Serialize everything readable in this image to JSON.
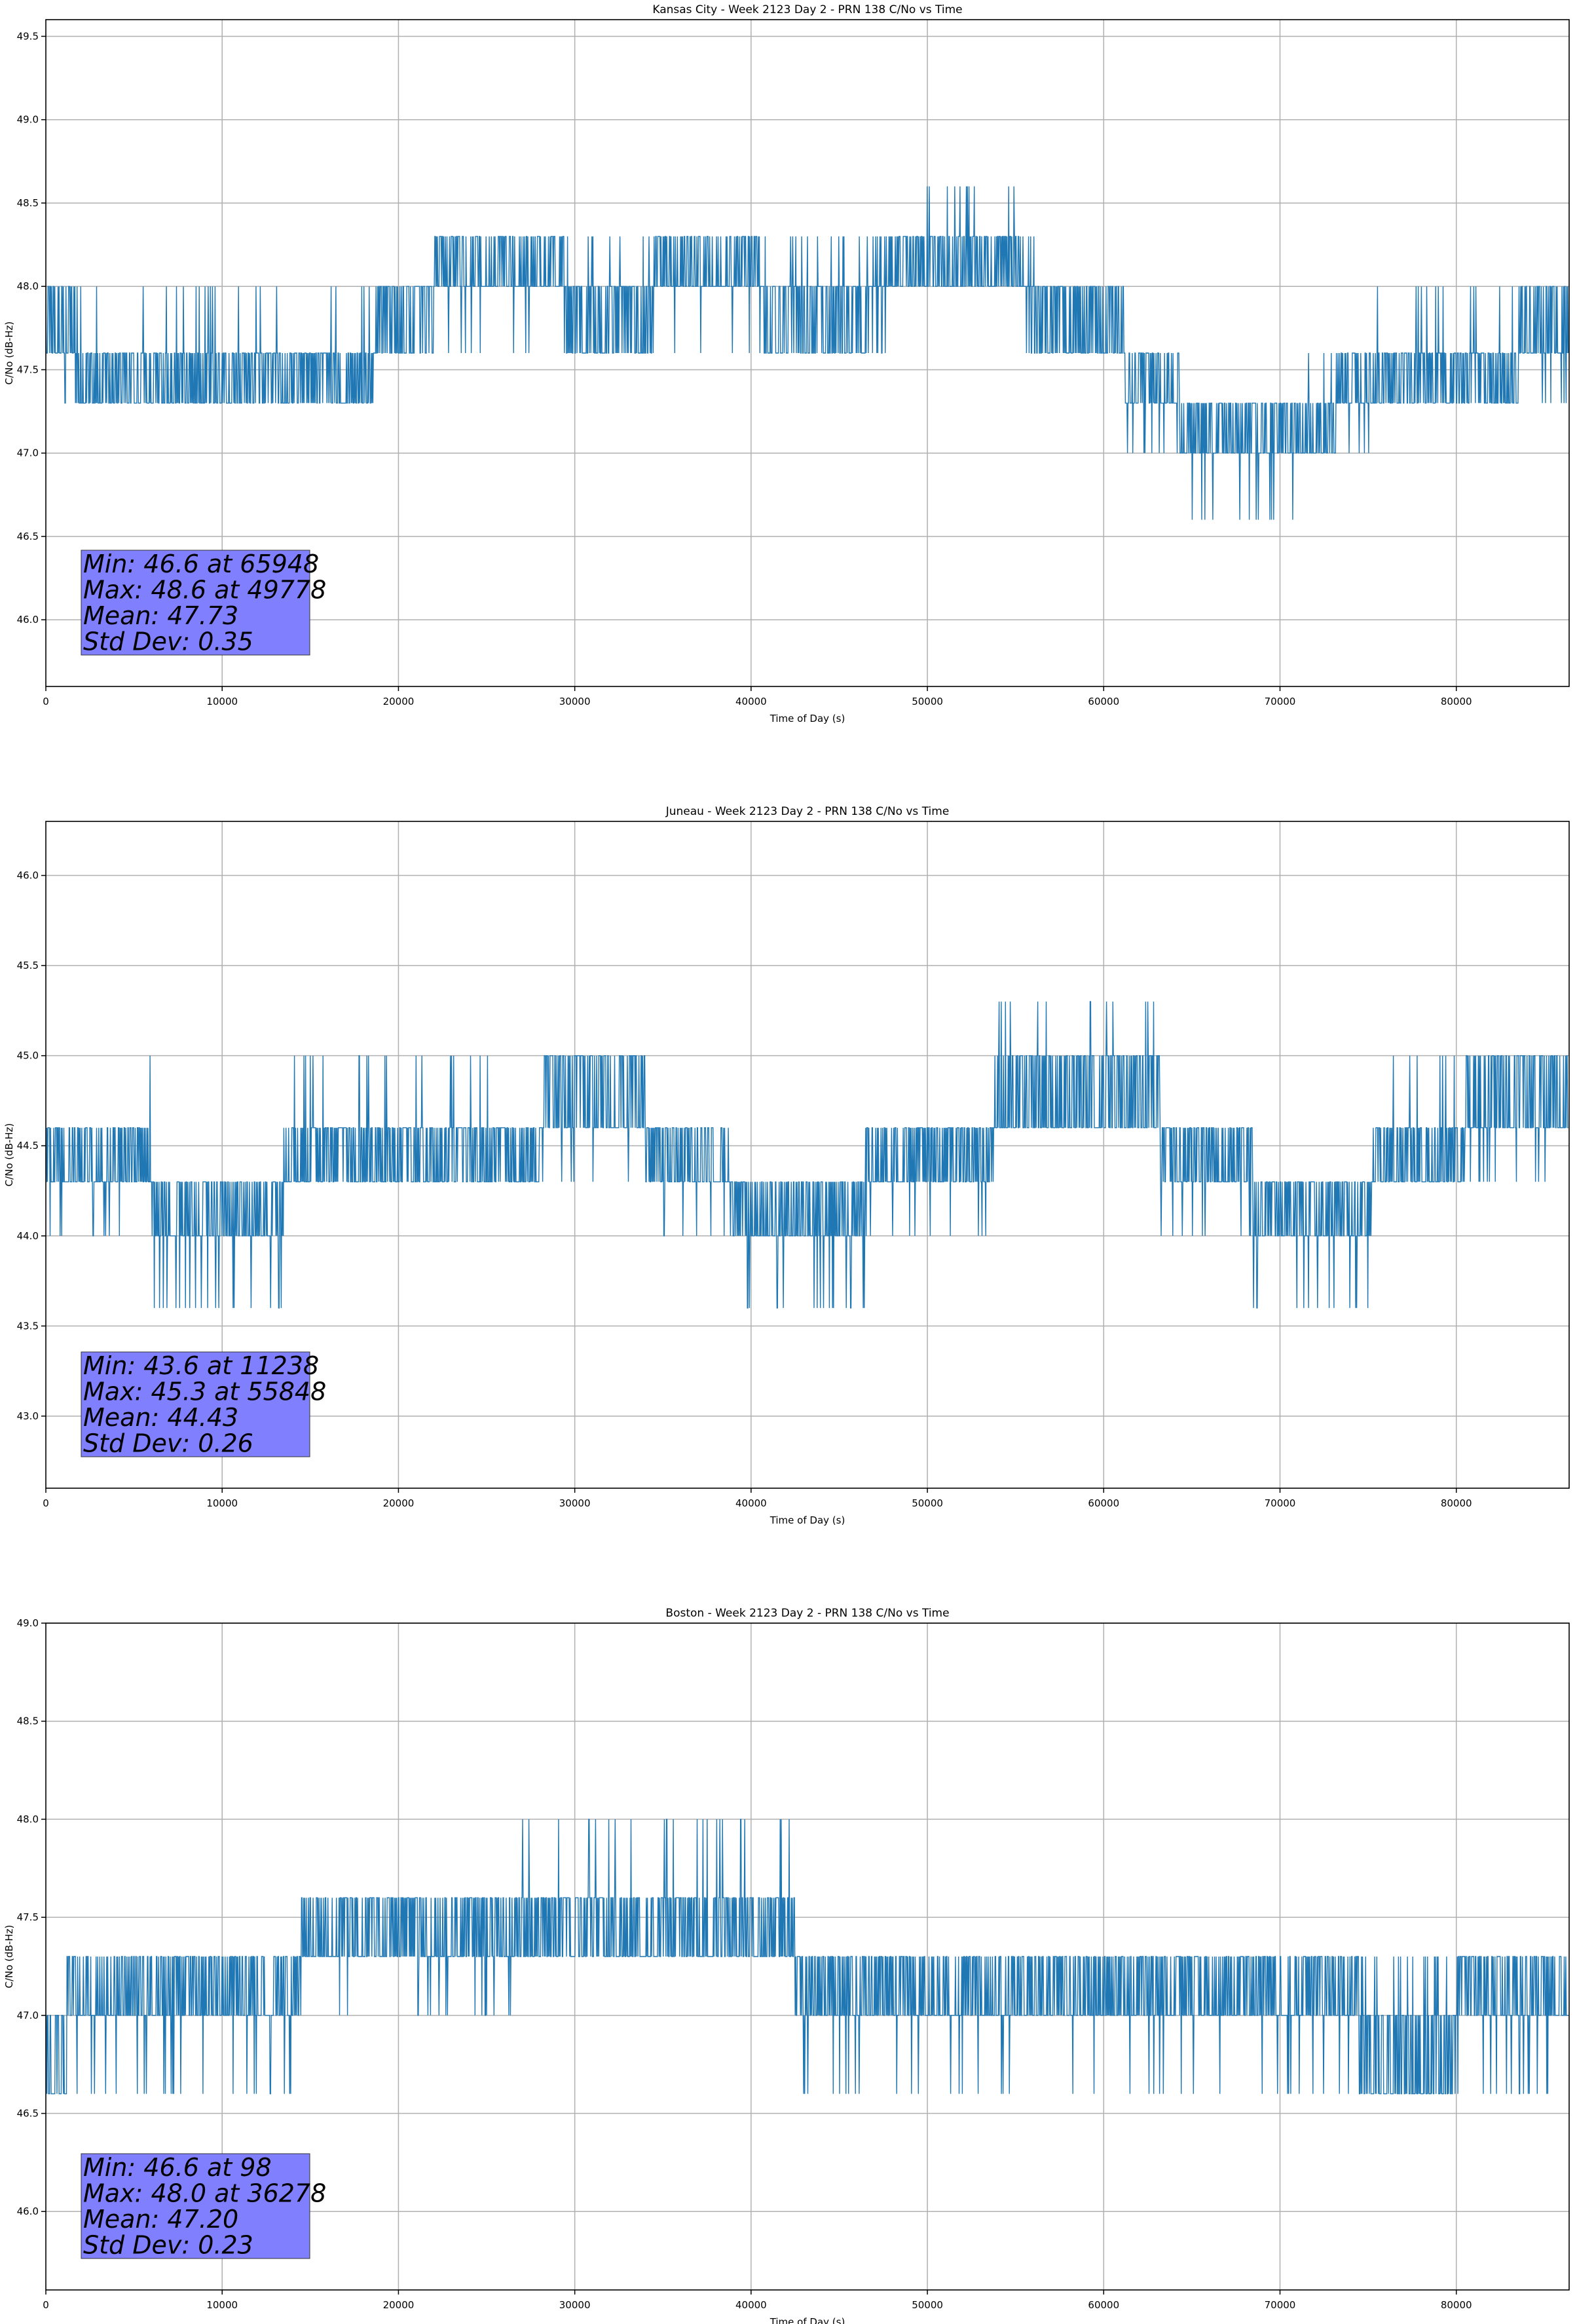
{
  "figure": {
    "colors": {
      "line": "#1f77b4",
      "stats_box": "#8080ff",
      "grid": "#b0b0b0",
      "axis": "#000000"
    }
  },
  "chart_data": [
    {
      "type": "line",
      "title": "Kansas City - Week 2123 Day 2 - PRN 138 C/No vs Time",
      "xlabel": "Time of Day (s)",
      "ylabel": "C/No (dB-Hz)",
      "xlim": [
        0,
        86400
      ],
      "ylim": [
        45.6,
        49.6
      ],
      "xticks": [
        0,
        10000,
        20000,
        30000,
        40000,
        50000,
        60000,
        70000,
        80000
      ],
      "xtick_labels": [
        "0",
        "10000",
        "20000",
        "30000",
        "40000",
        "50000",
        "60000",
        "70000",
        "80000"
      ],
      "yticks": [
        46.0,
        46.5,
        47.0,
        47.5,
        48.0,
        48.5,
        49.0,
        49.5
      ],
      "ytick_labels": [
        "46.0",
        "46.5",
        "47.0",
        "47.5",
        "48.0",
        "48.5",
        "49.0",
        "49.5"
      ],
      "grid": true,
      "levels": [
        46.6,
        47.0,
        47.3,
        47.6,
        48.0,
        48.3,
        48.6
      ],
      "segments": [
        {
          "x": [
            0,
            1800
          ],
          "base": 47.6,
          "alt": [
            48.0,
            47.3
          ]
        },
        {
          "x": [
            1800,
            10000
          ],
          "base": 47.3,
          "alt": [
            47.6,
            48.0
          ]
        },
        {
          "x": [
            10000,
            18700
          ],
          "base": 47.6,
          "alt": [
            47.3,
            48.0
          ]
        },
        {
          "x": [
            18700,
            22000
          ],
          "base": 47.6,
          "alt": [
            48.0,
            48.0
          ]
        },
        {
          "x": [
            22000,
            29500
          ],
          "base": 48.0,
          "alt": [
            48.3,
            47.6
          ]
        },
        {
          "x": [
            29500,
            34500
          ],
          "base": 47.6,
          "alt": [
            48.0,
            48.3
          ]
        },
        {
          "x": [
            34500,
            40500
          ],
          "base": 48.0,
          "alt": [
            48.3,
            47.6
          ]
        },
        {
          "x": [
            40500,
            46500
          ],
          "base": 47.6,
          "alt": [
            48.0,
            48.3
          ]
        },
        {
          "x": [
            46500,
            49000
          ],
          "base": 48.0,
          "alt": [
            48.3,
            47.6
          ]
        },
        {
          "x": [
            49000,
            55500
          ],
          "base": 48.0,
          "alt": [
            48.3,
            48.6
          ]
        },
        {
          "x": [
            55500,
            56200
          ],
          "base": 48.0,
          "alt": [
            47.6,
            48.3
          ]
        },
        {
          "x": [
            56200,
            61200
          ],
          "base": 47.6,
          "alt": [
            48.0,
            48.0
          ]
        },
        {
          "x": [
            61200,
            64300
          ],
          "base": 47.3,
          "alt": [
            47.6,
            47.0
          ]
        },
        {
          "x": [
            64300,
            71500
          ],
          "base": 47.0,
          "alt": [
            47.3,
            46.6
          ]
        },
        {
          "x": [
            71500,
            73200
          ],
          "base": 47.0,
          "alt": [
            47.3,
            47.6
          ]
        },
        {
          "x": [
            73200,
            75200
          ],
          "base": 47.3,
          "alt": [
            47.6,
            47.0
          ]
        },
        {
          "x": [
            75200,
            83500
          ],
          "base": 47.3,
          "alt": [
            47.6,
            48.0
          ]
        },
        {
          "x": [
            83500,
            86400
          ],
          "base": 47.6,
          "alt": [
            48.0,
            47.3
          ]
        }
      ],
      "stats": {
        "min": "Min: 46.6 at 65948",
        "max": "Max: 48.6 at 49778",
        "mean": "Mean: 47.73",
        "std": "Std Dev: 0.35"
      }
    },
    {
      "type": "line",
      "title": "Juneau - Week 2123 Day 2 - PRN 138 C/No vs Time",
      "xlabel": "Time of Day (s)",
      "ylabel": "C/No (dB-Hz)",
      "xlim": [
        0,
        86400
      ],
      "ylim": [
        42.6,
        46.3
      ],
      "xticks": [
        0,
        10000,
        20000,
        30000,
        40000,
        50000,
        60000,
        70000,
        80000
      ],
      "xtick_labels": [
        "0",
        "10000",
        "20000",
        "30000",
        "40000",
        "50000",
        "60000",
        "70000",
        "80000"
      ],
      "yticks": [
        43.0,
        43.5,
        44.0,
        44.5,
        45.0,
        45.5,
        46.0
      ],
      "ytick_labels": [
        "43.0",
        "43.5",
        "44.0",
        "44.5",
        "45.0",
        "45.5",
        "46.0"
      ],
      "grid": true,
      "levels": [
        43.6,
        44.0,
        44.3,
        44.6,
        45.0,
        45.3
      ],
      "segments": [
        {
          "x": [
            0,
            4200
          ],
          "base": 44.3,
          "alt": [
            44.6,
            44.0
          ]
        },
        {
          "x": [
            4200,
            6000
          ],
          "base": 44.3,
          "alt": [
            44.6,
            45.0
          ]
        },
        {
          "x": [
            6000,
            13500
          ],
          "base": 44.0,
          "alt": [
            44.3,
            43.6
          ]
        },
        {
          "x": [
            13500,
            28000
          ],
          "base": 44.3,
          "alt": [
            44.6,
            45.0
          ]
        },
        {
          "x": [
            28000,
            34000
          ],
          "base": 44.6,
          "alt": [
            45.0,
            44.3
          ]
        },
        {
          "x": [
            34000,
            38800
          ],
          "base": 44.3,
          "alt": [
            44.6,
            44.0
          ]
        },
        {
          "x": [
            38800,
            46500
          ],
          "base": 44.0,
          "alt": [
            44.3,
            43.6
          ]
        },
        {
          "x": [
            46500,
            53800
          ],
          "base": 44.3,
          "alt": [
            44.6,
            44.0
          ]
        },
        {
          "x": [
            53800,
            63200
          ],
          "base": 44.6,
          "alt": [
            45.0,
            45.3
          ]
        },
        {
          "x": [
            63200,
            68500
          ],
          "base": 44.3,
          "alt": [
            44.6,
            44.0
          ]
        },
        {
          "x": [
            68500,
            75200
          ],
          "base": 44.0,
          "alt": [
            44.3,
            43.6
          ]
        },
        {
          "x": [
            75200,
            80500
          ],
          "base": 44.3,
          "alt": [
            44.6,
            45.0
          ]
        },
        {
          "x": [
            80500,
            86400
          ],
          "base": 44.6,
          "alt": [
            45.0,
            44.3
          ]
        }
      ],
      "stats": {
        "min": "Min: 43.6 at 11238",
        "max": "Max: 45.3 at 55848",
        "mean": "Mean: 44.43",
        "std": "Std Dev: 0.26"
      }
    },
    {
      "type": "line",
      "title": "Boston - Week 2123 Day 2 - PRN 138 C/No vs Time",
      "xlabel": "Time of Day (s)",
      "ylabel": "C/No (dB-Hz)",
      "xlim": [
        0,
        86400
      ],
      "ylim": [
        45.6,
        49.0
      ],
      "xticks": [
        0,
        10000,
        20000,
        30000,
        40000,
        50000,
        60000,
        70000,
        80000
      ],
      "xtick_labels": [
        "0",
        "10000",
        "20000",
        "30000",
        "40000",
        "50000",
        "60000",
        "70000",
        "80000"
      ],
      "yticks": [
        46.0,
        46.5,
        47.0,
        47.5,
        48.0,
        48.5,
        49.0
      ],
      "ytick_labels": [
        "46.0",
        "46.5",
        "47.0",
        "47.5",
        "48.0",
        "48.5",
        "49.0"
      ],
      "grid": true,
      "levels": [
        46.6,
        47.0,
        47.3,
        47.6,
        48.0
      ],
      "segments": [
        {
          "x": [
            0,
            1200
          ],
          "base": 46.6,
          "alt": [
            47.0,
            47.3
          ]
        },
        {
          "x": [
            1200,
            14500
          ],
          "base": 47.0,
          "alt": [
            47.3,
            46.6
          ]
        },
        {
          "x": [
            14500,
            26500
          ],
          "base": 47.3,
          "alt": [
            47.6,
            47.0
          ]
        },
        {
          "x": [
            26500,
            42500
          ],
          "base": 47.3,
          "alt": [
            47.6,
            48.0
          ]
        },
        {
          "x": [
            42500,
            74500
          ],
          "base": 47.0,
          "alt": [
            47.3,
            46.6
          ]
        },
        {
          "x": [
            74500,
            80000
          ],
          "base": 46.6,
          "alt": [
            47.0,
            47.3
          ]
        },
        {
          "x": [
            80000,
            86400
          ],
          "base": 47.0,
          "alt": [
            47.3,
            46.6
          ]
        }
      ],
      "stats": {
        "min": "Min: 46.6 at 98",
        "max": "Max: 48.0 at 36278",
        "mean": "Mean: 47.20",
        "std": "Std Dev: 0.23"
      }
    }
  ]
}
